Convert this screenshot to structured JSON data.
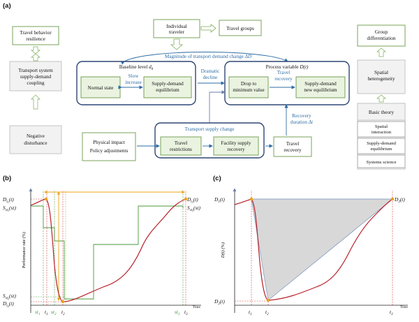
{
  "panel_a": {
    "label": "(a)",
    "top_boxes": [
      "Individual traveler",
      "Travel groups"
    ],
    "left_column": {
      "resilience": "Travel behavior resilience",
      "coupling": "Transport system supply-demand coupling",
      "disturbance": "Negative disturbance"
    },
    "right_column": {
      "group_diff": "Group differentiation",
      "spatial_het": "Spatial heterogeneity",
      "basic_theory": "Basic theory",
      "items": [
        "Spatial interaction",
        "Supply-demand equilibrium",
        "Systems science"
      ]
    },
    "demand_change": "Magnitude of transport demand change ΔD",
    "baseline": {
      "title": "Baseline level d",
      "title_sub": "0",
      "normal_state": "Normal state",
      "slow_increase": "Slow increase",
      "equilibrium": "Supply-demand equilibrium"
    },
    "process": {
      "title": "Process variable D(t)",
      "drop": "Drop to minimum value",
      "travel_recovery": "Travel recovery",
      "new_equilibrium": "Supply-demand new equilibrium"
    },
    "dramatic_decline": "Dramatic decline",
    "supply_change": {
      "title": "Transport supply change",
      "restrictions": "Travel restrictions",
      "facility_recovery": "Facility supply recovery"
    },
    "impacts": [
      "Physical impact",
      "Policy adjustments"
    ],
    "recovery_duration": "Recovery duration Δt",
    "travel_recovery_box": "Travel recovery"
  },
  "panel_b": {
    "label": "(b)",
    "y_axis_label": "Performance rate (%)",
    "x_axis_label": "Time",
    "y_ticks": [
      "D_t1(t)",
      "S_st1(st)",
      "S_st2(st)",
      "D_t2(t)"
    ],
    "x_ticks": [
      "st1",
      "t1",
      "st2",
      "t2",
      "st3",
      "t3"
    ],
    "right_labels": [
      "D_t3(t)",
      "S_st3(st)"
    ]
  },
  "panel_c": {
    "label": "(c)",
    "y_axis_label": "D(t) (%)",
    "x_axis_label": "Time",
    "y_ticks": [
      "D1(t)",
      "D2(t)"
    ],
    "x_ticks": [
      "t1",
      "t2",
      "t3"
    ],
    "right_label": "D3(t)"
  }
}
